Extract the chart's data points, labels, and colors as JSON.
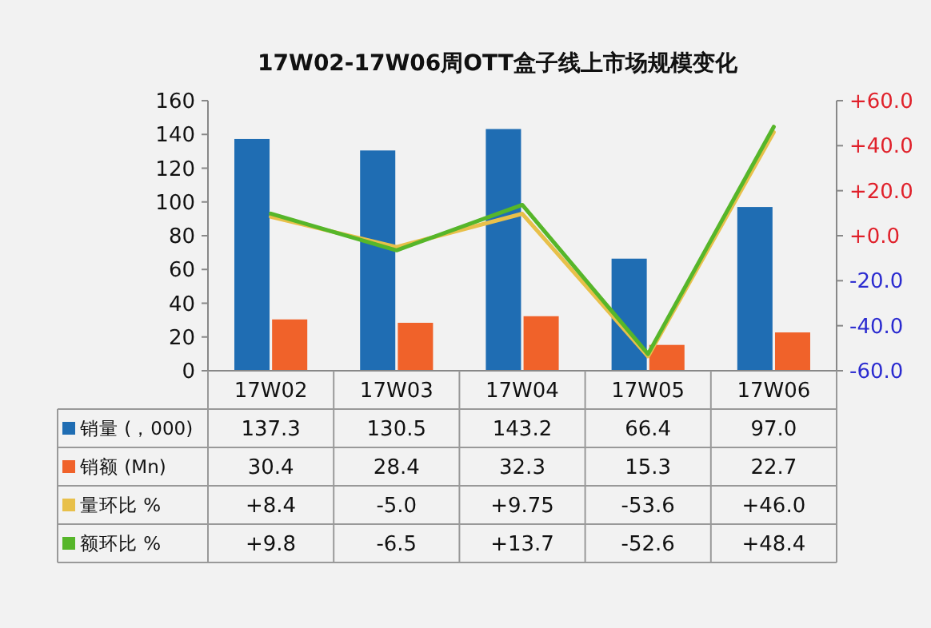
{
  "chart_data": {
    "type": "bar",
    "title": "17W02-17W06周OTT盒子线上市场规模变化",
    "categories": [
      "17W02",
      "17W03",
      "17W04",
      "17W05",
      "17W06"
    ],
    "series": [
      {
        "name": "销量 (，000)",
        "color": "#1f6db3",
        "values": [
          137.3,
          130.5,
          143.2,
          66.4,
          97.0
        ],
        "value_labels": [
          "137.3",
          "130.5",
          "143.2",
          "66.4",
          "97.0"
        ]
      },
      {
        "name": "销额 (Mn)",
        "color": "#f0622a",
        "values": [
          30.4,
          28.4,
          32.3,
          15.3,
          22.7
        ],
        "value_labels": [
          "30.4",
          "28.4",
          "32.3",
          "15.3",
          "22.7"
        ]
      },
      {
        "name": "量环比 %",
        "type": "line",
        "axis": "y2",
        "color": "#e8c04a",
        "values": [
          8.4,
          -5.0,
          9.75,
          -53.6,
          46.0
        ],
        "value_labels": [
          "+8.4",
          "-5.0",
          "+9.75",
          "-53.6",
          "+46.0"
        ]
      },
      {
        "name": "额环比 %",
        "type": "line",
        "axis": "y2",
        "color": "#56b62a",
        "values": [
          9.8,
          -6.5,
          13.7,
          -52.6,
          48.4
        ],
        "value_labels": [
          "+9.8",
          "-6.5",
          "+13.7",
          "-52.6",
          "+48.4"
        ]
      }
    ],
    "ylim": [
      0,
      160
    ],
    "yticks": [
      0,
      20,
      40,
      60,
      80,
      100,
      120,
      140,
      160
    ],
    "y2lim": [
      -60,
      60
    ],
    "y2ticks": [
      {
        "value": -60,
        "label": "-60.0"
      },
      {
        "value": -40,
        "label": "-40.0"
      },
      {
        "value": -20,
        "label": "-20.0"
      },
      {
        "value": 0,
        "label": "+0.0"
      },
      {
        "value": 20,
        "label": "+20.0"
      },
      {
        "value": 40,
        "label": "+40.0"
      },
      {
        "value": 60,
        "label": "+60.0"
      }
    ],
    "grid": false,
    "legend": "bottom",
    "marker": "none",
    "line_style": "solid"
  }
}
